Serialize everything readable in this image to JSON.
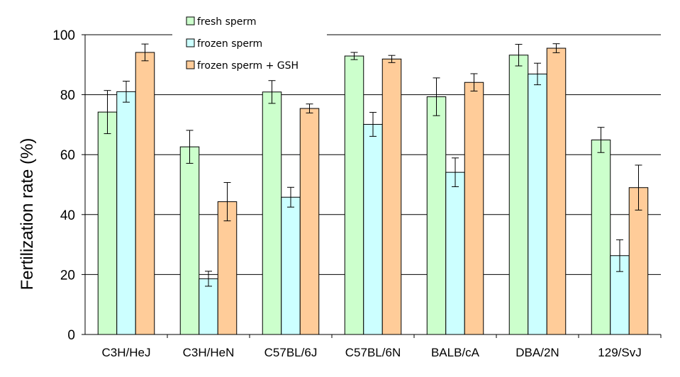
{
  "chart_data": {
    "type": "bar",
    "title": "",
    "xlabel": "",
    "ylabel": "Fertilization rate (%)",
    "ylim": [
      0,
      100
    ],
    "yticks": [
      0,
      20,
      40,
      60,
      80,
      100
    ],
    "grid": "horizontal",
    "legend_position": "top-left",
    "categories": [
      "C3H/HeJ",
      "C3H/HeN",
      "C57BL/6J",
      "C57BL/6N",
      "BALB/cA",
      "DBA/2N",
      "129/SvJ"
    ],
    "series": [
      {
        "name": "fresh sperm",
        "color": "#ccffcc",
        "values": [
          74.2,
          62.6,
          80.9,
          92.9,
          79.3,
          93.2,
          64.9
        ],
        "errors": [
          7.2,
          5.5,
          3.8,
          1.2,
          6.3,
          3.6,
          4.2
        ]
      },
      {
        "name": "frozen sperm",
        "color": "#ccffff",
        "values": [
          81.0,
          18.6,
          45.8,
          70.1,
          54.1,
          86.9,
          26.3
        ],
        "errors": [
          3.5,
          2.5,
          3.3,
          4.0,
          4.8,
          3.6,
          5.3
        ]
      },
      {
        "name": "frozen sperm + GSH",
        "color": "#ffcc99",
        "values": [
          94.1,
          44.3,
          75.4,
          91.9,
          84.1,
          95.5,
          49.0
        ],
        "errors": [
          2.8,
          6.4,
          1.5,
          1.2,
          2.9,
          1.5,
          7.5
        ]
      }
    ]
  }
}
